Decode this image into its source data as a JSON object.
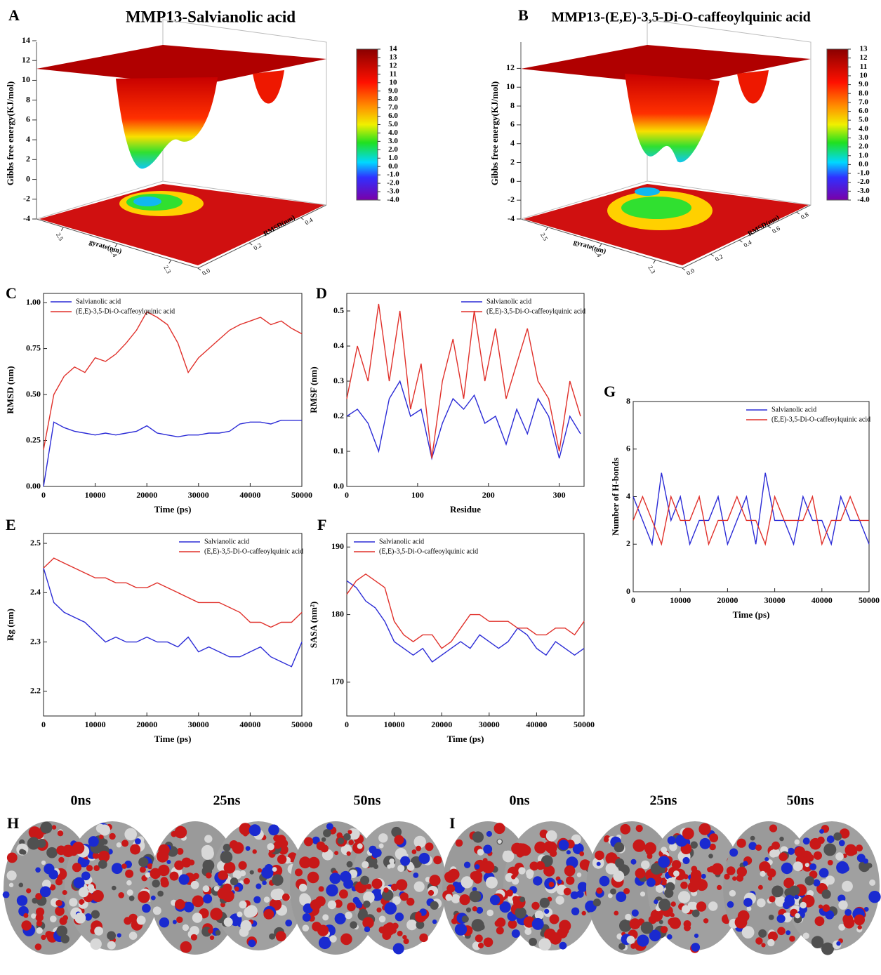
{
  "chart_data": [
    {
      "type": "surface",
      "panel": "A",
      "title": "MMP13-Salvianolic acid",
      "zlabel": "Gibbs free energy(KJ/mol)",
      "xlabel": "gyrate(nm)",
      "ylabel": "RMSD(nm)",
      "zlim": [
        -4,
        14
      ],
      "zticks": [
        -4,
        -2,
        0,
        2,
        4,
        6,
        8,
        10,
        12,
        14
      ],
      "xlim": [
        2.25,
        2.55
      ],
      "xticks": [
        2.3,
        2.4,
        2.5
      ],
      "ylim": [
        0,
        0.5
      ],
      "yticks": [
        {
          "value": 0,
          "label": "0.0"
        },
        {
          "value": 0.2,
          "label": "0.2"
        },
        {
          "value": 0.4,
          "label": "0.4"
        }
      ],
      "colorbar_lim": [
        -4,
        14
      ],
      "colorbar_ticks": [
        14,
        13,
        12,
        11,
        10,
        {
          "value": 9,
          "label": "9.0"
        },
        {
          "value": 8,
          "label": "8.0"
        },
        {
          "value": 7,
          "label": "7.0"
        },
        {
          "value": 6,
          "label": "6.0"
        },
        {
          "value": 5,
          "label": "5.0"
        },
        {
          "value": 4,
          "label": "4.0"
        },
        {
          "value": 3,
          "label": "3.0"
        },
        {
          "value": 2,
          "label": "2.0"
        },
        {
          "value": 1,
          "label": "1.0"
        },
        {
          "value": 0,
          "label": "0.0"
        },
        {
          "value": -1,
          "label": "-1.0"
        },
        {
          "value": -2,
          "label": "-2.0"
        },
        {
          "value": -3,
          "label": "-3.0"
        },
        {
          "value": -4,
          "label": "-4.0"
        }
      ]
    },
    {
      "type": "surface",
      "panel": "B",
      "title": "MMP13-(E,E)-3,5-Di-O-caffeoylquinic acid",
      "zlabel": "Gibbs free energy(KJ/mol)",
      "xlabel": "gyrate(nm)",
      "ylabel": "RMSD(nm)",
      "zlim": [
        -4,
        13
      ],
      "zticks": [
        -4,
        -2,
        0,
        2,
        4,
        6,
        8,
        10,
        12
      ],
      "xlim": [
        2.25,
        2.55
      ],
      "xticks": [
        2.3,
        2.4,
        2.5
      ],
      "ylim": [
        0,
        0.9
      ],
      "yticks": [
        {
          "value": 0,
          "label": "0.0"
        },
        {
          "value": 0.2,
          "label": "0.2"
        },
        {
          "value": 0.4,
          "label": "0.4"
        },
        {
          "value": 0.6,
          "label": "0.6"
        },
        {
          "value": 0.8,
          "label": "0.8"
        }
      ],
      "colorbar_lim": [
        -4,
        13
      ],
      "colorbar_ticks": [
        13,
        12,
        11,
        10,
        {
          "value": 9,
          "label": "9.0"
        },
        {
          "value": 8,
          "label": "8.0"
        },
        {
          "value": 7,
          "label": "7.0"
        },
        {
          "value": 6,
          "label": "6.0"
        },
        {
          "value": 5,
          "label": "5.0"
        },
        {
          "value": 4,
          "label": "4.0"
        },
        {
          "value": 3,
          "label": "3.0"
        },
        {
          "value": 2,
          "label": "2.0"
        },
        {
          "value": 1,
          "label": "1.0"
        },
        {
          "value": 0,
          "label": "0.0"
        },
        {
          "value": -1,
          "label": "-1.0"
        },
        {
          "value": -2,
          "label": "-2.0"
        },
        {
          "value": -3,
          "label": "-3.0"
        },
        {
          "value": -4,
          "label": "-4.0"
        }
      ]
    },
    {
      "type": "line",
      "panel": "C",
      "xlabel": "Time (ps)",
      "ylabel": "RMSD (nm)",
      "legend": "upper-left",
      "x": [
        0,
        2000,
        4000,
        6000,
        8000,
        10000,
        12000,
        14000,
        16000,
        18000,
        20000,
        22000,
        24000,
        26000,
        28000,
        30000,
        32000,
        34000,
        36000,
        38000,
        40000,
        42000,
        44000,
        46000,
        48000,
        50000
      ],
      "xlim": [
        0,
        50000
      ],
      "xticks": [
        0,
        10000,
        20000,
        30000,
        40000,
        50000
      ],
      "ylim": [
        0,
        1.05
      ],
      "yticks": [
        {
          "value": 0,
          "label": "0.00"
        },
        {
          "value": 0.25,
          "label": "0.25"
        },
        {
          "value": 0.5,
          "label": "0.50"
        },
        {
          "value": 0.75,
          "label": "0.75"
        },
        {
          "value": 1,
          "label": "1.00"
        }
      ],
      "series": [
        {
          "name": "Salvianolic acid",
          "color": "#2b2bd6",
          "values": [
            0,
            0.35,
            0.32,
            0.3,
            0.29,
            0.28,
            0.29,
            0.28,
            0.29,
            0.3,
            0.33,
            0.29,
            0.28,
            0.27,
            0.28,
            0.28,
            0.29,
            0.29,
            0.3,
            0.34,
            0.35,
            0.35,
            0.34,
            0.36,
            0.36,
            0.36
          ]
        },
        {
          "name": "(E,E)-3,5-Di-O-caffeoylquinic acid",
          "color": "#e0302a",
          "values": [
            0.2,
            0.5,
            0.6,
            0.65,
            0.62,
            0.7,
            0.68,
            0.72,
            0.78,
            0.85,
            0.95,
            0.92,
            0.88,
            0.78,
            0.62,
            0.7,
            0.75,
            0.8,
            0.85,
            0.88,
            0.9,
            0.92,
            0.88,
            0.9,
            0.86,
            0.83
          ]
        }
      ]
    },
    {
      "type": "line",
      "panel": "D",
      "xlabel": "Residue",
      "ylabel": "RMSF (nm)",
      "legend": "upper-right",
      "x": [
        0,
        15,
        30,
        45,
        60,
        75,
        90,
        105,
        120,
        135,
        150,
        165,
        180,
        195,
        210,
        225,
        240,
        255,
        270,
        285,
        300,
        315,
        330
      ],
      "xlim": [
        0,
        335
      ],
      "xticks": [
        0,
        100,
        200,
        300
      ],
      "ylim": [
        0,
        0.55
      ],
      "yticks": [
        {
          "value": 0,
          "label": "0.0"
        },
        0.1,
        0.2,
        0.3,
        0.4,
        0.5
      ],
      "series": [
        {
          "name": "Salvianolic acid",
          "color": "#2b2bd6",
          "values": [
            0.2,
            0.22,
            0.18,
            0.1,
            0.25,
            0.3,
            0.2,
            0.22,
            0.08,
            0.18,
            0.25,
            0.22,
            0.26,
            0.18,
            0.2,
            0.12,
            0.22,
            0.15,
            0.25,
            0.2,
            0.08,
            0.2,
            0.15
          ]
        },
        {
          "name": "(E,E)-3,5-Di-O-caffeoylquinic acid",
          "color": "#e0302a",
          "values": [
            0.25,
            0.4,
            0.3,
            0.52,
            0.3,
            0.5,
            0.22,
            0.35,
            0.08,
            0.3,
            0.42,
            0.25,
            0.5,
            0.3,
            0.45,
            0.25,
            0.35,
            0.45,
            0.3,
            0.25,
            0.1,
            0.3,
            0.2
          ]
        }
      ]
    },
    {
      "type": "line",
      "panel": "E",
      "xlabel": "Time (ps)",
      "ylabel": "Rg (nm)",
      "legend": "upper-right",
      "x": [
        0,
        2000,
        4000,
        6000,
        8000,
        10000,
        12000,
        14000,
        16000,
        18000,
        20000,
        22000,
        24000,
        26000,
        28000,
        30000,
        32000,
        34000,
        36000,
        38000,
        40000,
        42000,
        44000,
        46000,
        48000,
        50000
      ],
      "xlim": [
        0,
        50000
      ],
      "xticks": [
        0,
        10000,
        20000,
        30000,
        40000,
        50000
      ],
      "ylim": [
        2.15,
        2.52
      ],
      "yticks": [
        2.2,
        2.3,
        2.4,
        2.5
      ],
      "series": [
        {
          "name": "Salvianolic acid",
          "color": "#2b2bd6",
          "values": [
            2.45,
            2.38,
            2.36,
            2.35,
            2.34,
            2.32,
            2.3,
            2.31,
            2.3,
            2.3,
            2.31,
            2.3,
            2.3,
            2.29,
            2.31,
            2.28,
            2.29,
            2.28,
            2.27,
            2.27,
            2.28,
            2.29,
            2.27,
            2.26,
            2.25,
            2.3
          ]
        },
        {
          "name": "(E,E)-3,5-Di-O-caffeoylquinic acid",
          "color": "#e0302a",
          "values": [
            2.45,
            2.47,
            2.46,
            2.45,
            2.44,
            2.43,
            2.43,
            2.42,
            2.42,
            2.41,
            2.41,
            2.42,
            2.41,
            2.4,
            2.39,
            2.38,
            2.38,
            2.38,
            2.37,
            2.36,
            2.34,
            2.34,
            2.33,
            2.34,
            2.34,
            2.36
          ]
        }
      ]
    },
    {
      "type": "line",
      "panel": "F",
      "xlabel": "Time (ps)",
      "ylabel": "SASA (nm²)",
      "legend": "upper-left",
      "x": [
        0,
        2000,
        4000,
        6000,
        8000,
        10000,
        12000,
        14000,
        16000,
        18000,
        20000,
        22000,
        24000,
        26000,
        28000,
        30000,
        32000,
        34000,
        36000,
        38000,
        40000,
        42000,
        44000,
        46000,
        48000,
        50000
      ],
      "xlim": [
        0,
        50000
      ],
      "xticks": [
        0,
        10000,
        20000,
        30000,
        40000,
        50000
      ],
      "ylim": [
        165,
        192
      ],
      "yticks": [
        170,
        180,
        190
      ],
      "series": [
        {
          "name": "Salvianolic acid",
          "color": "#2b2bd6",
          "values": [
            185,
            184,
            182,
            181,
            179,
            176,
            175,
            174,
            175,
            173,
            174,
            175,
            176,
            175,
            177,
            176,
            175,
            176,
            178,
            177,
            175,
            174,
            176,
            175,
            174,
            175
          ]
        },
        {
          "name": "(E,E)-3,5-Di-O-caffeoylquinic acid",
          "color": "#e0302a",
          "values": [
            183,
            185,
            186,
            185,
            184,
            179,
            177,
            176,
            177,
            177,
            175,
            176,
            178,
            180,
            180,
            179,
            179,
            179,
            178,
            178,
            177,
            177,
            178,
            178,
            177,
            179
          ]
        }
      ]
    },
    {
      "type": "line",
      "panel": "G",
      "xlabel": "Time (ps)",
      "ylabel": "Number of H-bonds",
      "legend": "upper-right",
      "x": [
        0,
        2000,
        4000,
        6000,
        8000,
        10000,
        12000,
        14000,
        16000,
        18000,
        20000,
        22000,
        24000,
        26000,
        28000,
        30000,
        32000,
        34000,
        36000,
        38000,
        40000,
        42000,
        44000,
        46000,
        48000,
        50000
      ],
      "xlim": [
        0,
        50000
      ],
      "xticks": [
        0,
        10000,
        20000,
        30000,
        40000,
        50000
      ],
      "ylim": [
        0,
        8
      ],
      "yticks": [
        0,
        2,
        4,
        6,
        8
      ],
      "series": [
        {
          "name": "Salvianolic acid",
          "color": "#2b2bd6",
          "values": [
            4,
            3,
            2,
            5,
            3,
            4,
            2,
            3,
            3,
            4,
            2,
            3,
            4,
            2,
            5,
            3,
            3,
            2,
            4,
            3,
            3,
            2,
            4,
            3,
            3,
            2
          ]
        },
        {
          "name": "(E,E)-3,5-Di-O-caffeoylquinic acid",
          "color": "#e0302a",
          "values": [
            3,
            4,
            3,
            2,
            4,
            3,
            3,
            4,
            2,
            3,
            3,
            4,
            3,
            3,
            2,
            4,
            3,
            3,
            3,
            4,
            2,
            3,
            3,
            4,
            3,
            3
          ]
        }
      ]
    }
  ],
  "snapshots": [
    {
      "panel": "H",
      "labels": [
        "0ns",
        "25ns",
        "50ns"
      ]
    },
    {
      "panel": "I",
      "labels": [
        "0ns",
        "25ns",
        "50ns"
      ]
    }
  ]
}
